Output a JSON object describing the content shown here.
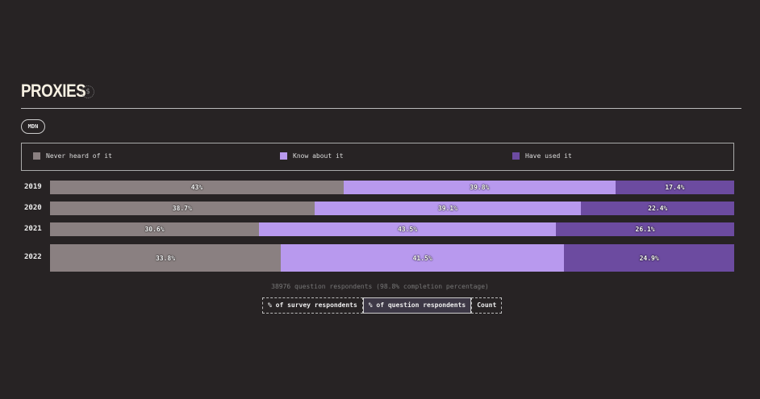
{
  "header": {
    "title": "PROXIES",
    "icon": "dollar-icon",
    "badge": "MDN"
  },
  "colors": {
    "never": "#8a8081",
    "know": "#b899ee",
    "used": "#6c4ba0"
  },
  "chart_data": {
    "type": "bar",
    "orientation": "horizontal",
    "stacked": true,
    "unit": "%",
    "categories": [
      "2019",
      "2020",
      "2021",
      "2022"
    ],
    "legend_placement": "top",
    "series": [
      {
        "name": "Never heard of it",
        "values": [
          43,
          38.7,
          30.6,
          33.8
        ],
        "labels": [
          "43%",
          "38.7%",
          "30.6%",
          "33.8%"
        ]
      },
      {
        "name": "Know about it",
        "values": [
          39.8,
          39.1,
          43.5,
          41.5
        ],
        "labels": [
          "39.8%",
          "39.1%",
          "43.5%",
          "41.5%"
        ]
      },
      {
        "name": "Have used it",
        "values": [
          17.4,
          22.4,
          26.1,
          24.9
        ],
        "labels": [
          "17.4%",
          "22.4%",
          "26.1%",
          "24.9%"
        ]
      }
    ]
  },
  "footer": {
    "note": "38976 question respondents (98.8% completion percentage)",
    "toggles": [
      "% of survey respondents",
      "% of question respondents",
      "Count"
    ],
    "active": 1
  }
}
